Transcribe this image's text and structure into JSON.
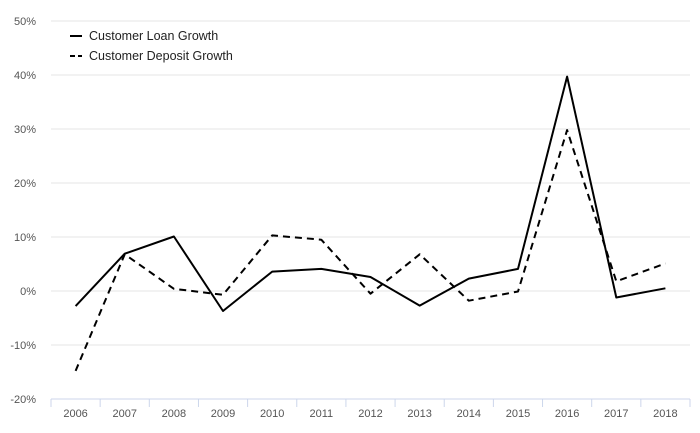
{
  "chart_data": {
    "type": "line",
    "categories": [
      "2006",
      "2007",
      "2008",
      "2009",
      "2010",
      "2011",
      "2012",
      "2013",
      "2014",
      "2015",
      "2016",
      "2017",
      "2018"
    ],
    "series": [
      {
        "name": "Customer Loan Growth",
        "style": "solid",
        "values": [
          -2.8,
          6.9,
          10.1,
          -3.7,
          3.6,
          4.1,
          2.6,
          -2.7,
          2.3,
          4.1,
          39.7,
          -1.2,
          0.5
        ]
      },
      {
        "name": "Customer Deposit Growth",
        "style": "dashed",
        "values": [
          -14.8,
          6.8,
          0.4,
          -0.7,
          10.3,
          9.5,
          -0.5,
          6.8,
          -1.8,
          -0.1,
          29.8,
          1.8,
          5.1
        ]
      }
    ],
    "ylim": [
      -20,
      50
    ],
    "yticks": [
      -20,
      -10,
      0,
      10,
      20,
      30,
      40,
      50
    ],
    "ytick_labels": [
      "-20%",
      "-10%",
      "0%",
      "10%",
      "20%",
      "30%",
      "40%",
      "50%"
    ],
    "grid": "horizontal",
    "legend_position": "top-left",
    "line_color": "#000000",
    "grid_color": "#e6e6e6"
  }
}
